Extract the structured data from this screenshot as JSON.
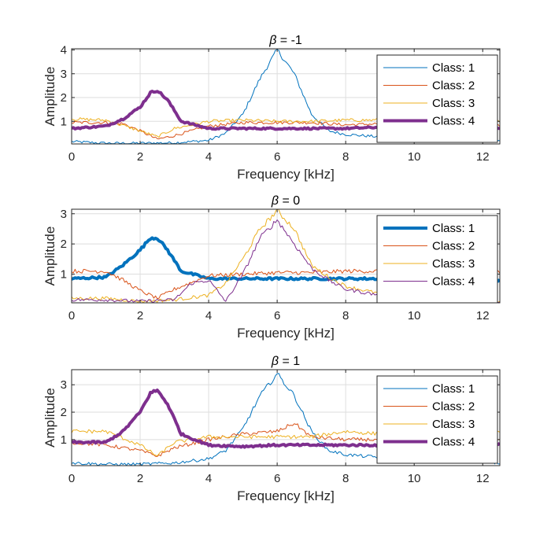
{
  "figure": {
    "background": "#ffffff"
  },
  "colors": {
    "class1": "#0072bd",
    "class2": "#d95319",
    "class3": "#edb120",
    "class4": "#7e2f8e",
    "grid": "#dedede",
    "axis": "#262626"
  },
  "chart_data": [
    {
      "type": "line",
      "title": "β = -1",
      "title_symbol": "β",
      "title_value": " = -1",
      "xlabel": "Frequency [kHz]",
      "ylabel": "Amplitude",
      "xlim": [
        0,
        12.5
      ],
      "ylim": [
        0.05,
        4.05
      ],
      "xticks": [
        0,
        2,
        4,
        6,
        8,
        10,
        12
      ],
      "yticks": [
        1,
        2,
        3,
        4
      ],
      "grid": true,
      "legend_position": "top-right",
      "thick_series": 3,
      "series": [
        {
          "name": "Class: 1",
          "x": [
            0,
            1,
            2,
            3,
            4,
            4.5,
            5,
            5.5,
            6,
            6.5,
            7,
            7.5,
            8,
            9,
            10,
            11,
            12,
            12.5
          ],
          "y": [
            0.15,
            0.08,
            0.08,
            0.1,
            0.2,
            0.5,
            1.3,
            2.8,
            4.0,
            3.0,
            1.3,
            0.6,
            0.45,
            0.35,
            0.3,
            0.25,
            0.18,
            0.15
          ]
        },
        {
          "name": "Class: 2",
          "x": [
            0,
            1,
            1.5,
            2,
            2.5,
            3,
            4,
            5,
            6,
            7,
            8,
            9,
            10,
            11,
            12,
            12.5
          ],
          "y": [
            0.95,
            0.95,
            0.9,
            0.6,
            0.25,
            0.4,
            0.8,
            0.95,
            0.95,
            0.95,
            0.85,
            0.9,
            0.85,
            0.8,
            0.85,
            0.85
          ]
        },
        {
          "name": "Class: 3",
          "x": [
            0,
            1,
            2,
            2.5,
            3,
            4,
            5,
            6,
            7,
            8,
            9,
            10,
            11,
            12,
            12.5
          ],
          "y": [
            1.1,
            1.05,
            0.6,
            0.35,
            0.7,
            1.0,
            1.05,
            1.0,
            1.0,
            1.05,
            1.05,
            1.05,
            1.0,
            1.0,
            1.0
          ]
        },
        {
          "name": "Class: 4",
          "x": [
            0,
            1,
            1.5,
            2,
            2.3,
            2.5,
            2.8,
            3.2,
            4,
            5,
            6,
            7,
            8,
            9,
            10,
            11,
            12,
            12.5
          ],
          "y": [
            0.7,
            0.8,
            1.1,
            1.6,
            2.2,
            2.3,
            1.9,
            1.0,
            0.7,
            0.7,
            0.7,
            0.7,
            0.7,
            0.75,
            0.75,
            0.7,
            0.75,
            0.7
          ]
        }
      ]
    },
    {
      "type": "line",
      "title": "β = 0",
      "title_symbol": "β",
      "title_value": " = 0",
      "xlabel": "Frequency [kHz]",
      "ylabel": "Amplitude",
      "xlim": [
        0,
        12.5
      ],
      "ylim": [
        0.05,
        3.15
      ],
      "xticks": [
        0,
        2,
        4,
        6,
        8,
        10,
        12
      ],
      "yticks": [
        1,
        2,
        3
      ],
      "grid": true,
      "legend_position": "top-right",
      "thick_series": 0,
      "series": [
        {
          "name": "Class: 1",
          "x": [
            0,
            1,
            1.5,
            2,
            2.3,
            2.5,
            2.8,
            3.2,
            4,
            5,
            6,
            7,
            8,
            9,
            10,
            11,
            12,
            12.5
          ],
          "y": [
            0.85,
            0.9,
            1.3,
            1.8,
            2.2,
            2.2,
            1.8,
            1.1,
            0.85,
            0.85,
            0.85,
            0.85,
            0.85,
            0.85,
            0.85,
            0.85,
            0.85,
            0.8
          ]
        },
        {
          "name": "Class: 2",
          "x": [
            0,
            1,
            1.5,
            2,
            2.5,
            3,
            4,
            5,
            6,
            7,
            8,
            9,
            10,
            11,
            12,
            12.5
          ],
          "y": [
            1.1,
            1.1,
            0.8,
            0.45,
            0.2,
            0.5,
            0.95,
            1.0,
            1.05,
            1.05,
            1.1,
            1.1,
            1.1,
            1.0,
            1.05,
            1.05
          ]
        },
        {
          "name": "Class: 3",
          "x": [
            0,
            1,
            2,
            3,
            4,
            4.5,
            5,
            5.5,
            6,
            6.5,
            7,
            7.5,
            8,
            9,
            10,
            11,
            12,
            12.5
          ],
          "y": [
            0.2,
            0.2,
            0.1,
            0.15,
            0.3,
            0.7,
            1.5,
            2.5,
            3.1,
            2.5,
            1.3,
            0.9,
            0.6,
            0.35,
            0.25,
            0.2,
            0.15,
            0.1
          ]
        },
        {
          "name": "Class: 4",
          "x": [
            0,
            1,
            2,
            3,
            3.5,
            4,
            4.5,
            5,
            5.5,
            6,
            6.5,
            7,
            7.5,
            8,
            9,
            10,
            11,
            12,
            12.5
          ],
          "y": [
            0.15,
            0.15,
            0.1,
            0.15,
            0.7,
            0.8,
            0.1,
            1.0,
            2.2,
            2.8,
            2.0,
            1.2,
            0.8,
            0.5,
            0.3,
            0.2,
            0.15,
            0.1,
            0.1
          ]
        }
      ]
    },
    {
      "type": "line",
      "title": "β = 1",
      "title_symbol": "β",
      "title_value": " = 1",
      "xlabel": "Frequency [kHz]",
      "ylabel": "Amplitude",
      "xlim": [
        0,
        12.5
      ],
      "ylim": [
        0.05,
        3.55
      ],
      "xticks": [
        0,
        2,
        4,
        6,
        8,
        10,
        12
      ],
      "yticks": [
        1,
        2,
        3
      ],
      "grid": true,
      "legend_position": "top-right",
      "thick_series": 3,
      "series": [
        {
          "name": "Class: 1",
          "x": [
            0,
            1,
            2,
            3,
            4,
            4.5,
            5,
            5.5,
            6,
            6.5,
            7,
            7.5,
            8,
            9,
            10,
            11,
            12,
            12.5
          ],
          "y": [
            0.15,
            0.1,
            0.1,
            0.15,
            0.3,
            0.6,
            1.4,
            2.6,
            3.4,
            2.6,
            1.3,
            0.6,
            0.45,
            0.35,
            0.3,
            0.25,
            0.2,
            0.15
          ]
        },
        {
          "name": "Class: 2",
          "x": [
            0,
            1,
            2,
            2.5,
            3,
            4,
            5,
            6,
            6.5,
            7,
            8,
            9,
            10,
            11,
            12,
            12.5
          ],
          "y": [
            0.9,
            0.8,
            0.6,
            0.4,
            0.7,
            1.0,
            1.2,
            1.3,
            1.6,
            1.1,
            1.0,
            1.0,
            1.0,
            0.95,
            0.95,
            0.95
          ]
        },
        {
          "name": "Class: 3",
          "x": [
            0,
            1,
            2,
            2.5,
            3,
            4,
            5,
            6,
            7,
            8,
            9,
            10,
            11,
            12,
            12.5
          ],
          "y": [
            1.3,
            1.3,
            0.8,
            0.4,
            0.9,
            1.1,
            1.1,
            1.1,
            1.1,
            1.3,
            1.2,
            1.2,
            1.2,
            1.2,
            1.3
          ]
        },
        {
          "name": "Class: 4",
          "x": [
            0,
            1,
            1.5,
            2,
            2.3,
            2.5,
            2.8,
            3.2,
            4,
            5,
            6,
            7,
            8,
            9,
            10,
            11,
            12,
            12.5
          ],
          "y": [
            0.9,
            0.9,
            1.3,
            2.0,
            2.7,
            2.8,
            2.3,
            1.2,
            0.8,
            0.75,
            0.8,
            0.8,
            0.8,
            0.8,
            0.8,
            0.85,
            0.85,
            0.85
          ]
        }
      ]
    }
  ]
}
